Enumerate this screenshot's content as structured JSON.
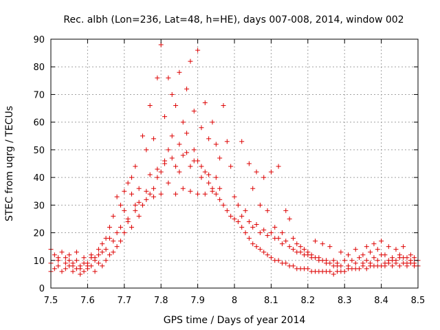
{
  "chart_data": {
    "type": "scatter",
    "title": "Rec. albh (Lon=236, Lat=48, h=HE), days 007-008, 2014, window 002",
    "xlabel": "GPS time / Days of year 2014",
    "ylabel": "STEC from uqrg / TECUs",
    "xlim": [
      7.5,
      8.5
    ],
    "ylim": [
      0,
      90
    ],
    "xticks": [
      "7.5",
      "7.6",
      "7.7",
      "7.8",
      "7.9",
      "8",
      "8.1",
      "8.2",
      "8.3",
      "8.4",
      "8.5"
    ],
    "yticks": [
      "0",
      "10",
      "20",
      "30",
      "40",
      "50",
      "60",
      "70",
      "80",
      "90"
    ],
    "grid": true,
    "marker": "+",
    "color": "#dd0000",
    "series": [
      {
        "name": "STEC",
        "points": [
          [
            7.5,
            6
          ],
          [
            7.5,
            9
          ],
          [
            7.5,
            14
          ],
          [
            7.51,
            7
          ],
          [
            7.51,
            12
          ],
          [
            7.52,
            8
          ],
          [
            7.52,
            10
          ],
          [
            7.53,
            6
          ],
          [
            7.53,
            13
          ],
          [
            7.54,
            7
          ],
          [
            7.54,
            11
          ],
          [
            7.55,
            8
          ],
          [
            7.55,
            12
          ],
          [
            7.56,
            6
          ],
          [
            7.56,
            9
          ],
          [
            7.57,
            7
          ],
          [
            7.57,
            10
          ],
          [
            7.58,
            5
          ],
          [
            7.58,
            8
          ],
          [
            7.59,
            6
          ],
          [
            7.59,
            11
          ],
          [
            7.6,
            7
          ],
          [
            7.6,
            9
          ],
          [
            7.61,
            8
          ],
          [
            7.61,
            12
          ],
          [
            7.62,
            6
          ],
          [
            7.62,
            10
          ],
          [
            7.63,
            9
          ],
          [
            7.63,
            14
          ],
          [
            7.64,
            8
          ],
          [
            7.64,
            16
          ],
          [
            7.65,
            10
          ],
          [
            7.65,
            18
          ],
          [
            7.66,
            12
          ],
          [
            7.66,
            22
          ],
          [
            7.67,
            13
          ],
          [
            7.67,
            26
          ],
          [
            7.68,
            15
          ],
          [
            7.68,
            33
          ],
          [
            7.69,
            17
          ],
          [
            7.69,
            30
          ],
          [
            7.7,
            20
          ],
          [
            7.7,
            35
          ],
          [
            7.71,
            24
          ],
          [
            7.71,
            38
          ],
          [
            7.72,
            22
          ],
          [
            7.72,
            40
          ],
          [
            7.73,
            28
          ],
          [
            7.73,
            44
          ],
          [
            7.74,
            26
          ],
          [
            7.74,
            36
          ],
          [
            7.75,
            30
          ],
          [
            7.75,
            55
          ],
          [
            7.76,
            32
          ],
          [
            7.76,
            50
          ],
          [
            7.77,
            34
          ],
          [
            7.77,
            66
          ],
          [
            7.78,
            36
          ],
          [
            7.78,
            54
          ],
          [
            7.79,
            40
          ],
          [
            7.79,
            76
          ],
          [
            7.8,
            42
          ],
          [
            7.8,
            88
          ],
          [
            7.81,
            46
          ],
          [
            7.81,
            62
          ],
          [
            7.82,
            50
          ],
          [
            7.82,
            76
          ],
          [
            7.83,
            55
          ],
          [
            7.83,
            70
          ],
          [
            7.84,
            44
          ],
          [
            7.84,
            66
          ],
          [
            7.85,
            52
          ],
          [
            7.85,
            78
          ],
          [
            7.86,
            48
          ],
          [
            7.86,
            60
          ],
          [
            7.87,
            56
          ],
          [
            7.87,
            72
          ],
          [
            7.88,
            44
          ],
          [
            7.88,
            82
          ],
          [
            7.89,
            50
          ],
          [
            7.89,
            64
          ],
          [
            7.9,
            46
          ],
          [
            7.9,
            86
          ],
          [
            7.91,
            40
          ],
          [
            7.91,
            58
          ],
          [
            7.92,
            42
          ],
          [
            7.92,
            67
          ],
          [
            7.93,
            38
          ],
          [
            7.93,
            54
          ],
          [
            7.94,
            36
          ],
          [
            7.94,
            60
          ],
          [
            7.95,
            34
          ],
          [
            7.95,
            52
          ],
          [
            7.96,
            32
          ],
          [
            7.96,
            47
          ],
          [
            7.97,
            30
          ],
          [
            7.97,
            66
          ],
          [
            7.98,
            28
          ],
          [
            7.98,
            53
          ],
          [
            7.99,
            26
          ],
          [
            7.99,
            44
          ],
          [
            8.0,
            25
          ],
          [
            8.0,
            33
          ],
          [
            8.01,
            24
          ],
          [
            8.01,
            30
          ],
          [
            8.02,
            22
          ],
          [
            8.02,
            53
          ],
          [
            8.03,
            20
          ],
          [
            8.03,
            28
          ],
          [
            8.04,
            18
          ],
          [
            8.04,
            45
          ],
          [
            8.05,
            16
          ],
          [
            8.05,
            36
          ],
          [
            8.06,
            15
          ],
          [
            8.06,
            42
          ],
          [
            8.07,
            14
          ],
          [
            8.07,
            30
          ],
          [
            8.08,
            13
          ],
          [
            8.08,
            40
          ],
          [
            8.09,
            12
          ],
          [
            8.09,
            28
          ],
          [
            8.1,
            11
          ],
          [
            8.1,
            42
          ],
          [
            8.11,
            10
          ],
          [
            8.11,
            22
          ],
          [
            8.12,
            10
          ],
          [
            8.12,
            44
          ],
          [
            8.13,
            9
          ],
          [
            8.13,
            20
          ],
          [
            8.14,
            9
          ],
          [
            8.14,
            28
          ],
          [
            8.15,
            8
          ],
          [
            8.15,
            25
          ],
          [
            8.16,
            8
          ],
          [
            8.16,
            18
          ],
          [
            8.17,
            7
          ],
          [
            8.17,
            16
          ],
          [
            8.18,
            7
          ],
          [
            8.18,
            15
          ],
          [
            8.19,
            7
          ],
          [
            8.19,
            14
          ],
          [
            8.2,
            7
          ],
          [
            8.2,
            13
          ],
          [
            8.21,
            6
          ],
          [
            8.21,
            12
          ],
          [
            8.22,
            6
          ],
          [
            8.22,
            17
          ],
          [
            8.23,
            6
          ],
          [
            8.23,
            11
          ],
          [
            8.24,
            6
          ],
          [
            8.24,
            16
          ],
          [
            8.25,
            6
          ],
          [
            8.25,
            10
          ],
          [
            8.26,
            6
          ],
          [
            8.26,
            15
          ],
          [
            8.27,
            5
          ],
          [
            8.27,
            10
          ],
          [
            8.28,
            6
          ],
          [
            8.28,
            9
          ],
          [
            8.29,
            6
          ],
          [
            8.29,
            13
          ],
          [
            8.3,
            6
          ],
          [
            8.3,
            10
          ],
          [
            8.31,
            7
          ],
          [
            8.31,
            12
          ],
          [
            8.32,
            7
          ],
          [
            8.32,
            10
          ],
          [
            8.33,
            7
          ],
          [
            8.33,
            14
          ],
          [
            8.34,
            7
          ],
          [
            8.34,
            11
          ],
          [
            8.35,
            8
          ],
          [
            8.35,
            12
          ],
          [
            8.36,
            7
          ],
          [
            8.36,
            15
          ],
          [
            8.37,
            8
          ],
          [
            8.37,
            13
          ],
          [
            8.38,
            8
          ],
          [
            8.38,
            16
          ],
          [
            8.39,
            8
          ],
          [
            8.39,
            14
          ],
          [
            8.4,
            8
          ],
          [
            8.4,
            17
          ],
          [
            8.41,
            8
          ],
          [
            8.41,
            12
          ],
          [
            8.42,
            9
          ],
          [
            8.42,
            15
          ],
          [
            8.43,
            8
          ],
          [
            8.43,
            11
          ],
          [
            8.44,
            9
          ],
          [
            8.44,
            14
          ],
          [
            8.45,
            8
          ],
          [
            8.45,
            12
          ],
          [
            8.46,
            9
          ],
          [
            8.46,
            15
          ],
          [
            8.47,
            8
          ],
          [
            8.47,
            11
          ],
          [
            8.48,
            9
          ],
          [
            8.48,
            10
          ],
          [
            8.49,
            8
          ],
          [
            8.49,
            9
          ],
          [
            8.5,
            8
          ],
          [
            8.5,
            10
          ],
          [
            7.76,
            35
          ],
          [
            7.78,
            33
          ],
          [
            7.8,
            34
          ],
          [
            7.82,
            38
          ],
          [
            7.84,
            34
          ],
          [
            7.86,
            36
          ],
          [
            7.88,
            35
          ],
          [
            7.9,
            34
          ],
          [
            7.92,
            34
          ],
          [
            7.94,
            35
          ],
          [
            7.96,
            36
          ],
          [
            7.77,
            41
          ],
          [
            7.79,
            43
          ],
          [
            7.81,
            45
          ],
          [
            7.83,
            47
          ],
          [
            7.85,
            42
          ],
          [
            7.87,
            49
          ],
          [
            7.89,
            46
          ],
          [
            7.91,
            44
          ],
          [
            7.93,
            41
          ],
          [
            7.95,
            40
          ],
          [
            8.05,
            22
          ],
          [
            8.07,
            20
          ],
          [
            8.09,
            19
          ],
          [
            8.11,
            18
          ],
          [
            8.13,
            16
          ],
          [
            8.15,
            15
          ],
          [
            8.17,
            13
          ],
          [
            8.19,
            12
          ],
          [
            8.21,
            11
          ],
          [
            8.23,
            10
          ],
          [
            8.25,
            9
          ],
          [
            8.27,
            8
          ],
          [
            8.29,
            8
          ],
          [
            8.31,
            8
          ],
          [
            8.33,
            9
          ],
          [
            8.35,
            9
          ],
          [
            7.55,
            10
          ],
          [
            7.57,
            13
          ],
          [
            7.59,
            9
          ],
          [
            7.61,
            11
          ],
          [
            7.63,
            12
          ],
          [
            7.65,
            14
          ],
          [
            7.67,
            17
          ],
          [
            7.69,
            22
          ],
          [
            7.71,
            25
          ],
          [
            7.73,
            30
          ],
          [
            7.74,
            31
          ],
          [
            7.72,
            34
          ],
          [
            7.7,
            28
          ],
          [
            7.68,
            20
          ],
          [
            7.66,
            18
          ],
          [
            7.64,
            13
          ],
          [
            7.62,
            11
          ],
          [
            7.6,
            8
          ],
          [
            7.58,
            7
          ],
          [
            7.56,
            8
          ],
          [
            7.54,
            9
          ],
          [
            7.52,
            11
          ],
          [
            8.36,
            10
          ],
          [
            8.38,
            11
          ],
          [
            8.4,
            12
          ],
          [
            8.42,
            10
          ],
          [
            8.44,
            10
          ],
          [
            8.46,
            11
          ],
          [
            8.48,
            12
          ],
          [
            8.37,
            9
          ],
          [
            8.39,
            10
          ],
          [
            8.41,
            9
          ],
          [
            8.43,
            10
          ],
          [
            8.45,
            11
          ],
          [
            8.47,
            9
          ],
          [
            8.49,
            11
          ],
          [
            8.02,
            26
          ],
          [
            8.04,
            24
          ],
          [
            8.06,
            23
          ],
          [
            8.08,
            21
          ],
          [
            8.1,
            20
          ],
          [
            8.12,
            18
          ],
          [
            8.14,
            17
          ],
          [
            8.16,
            14
          ],
          [
            8.18,
            13
          ],
          [
            8.2,
            12
          ],
          [
            8.22,
            11
          ],
          [
            8.24,
            10
          ],
          [
            8.26,
            9
          ],
          [
            8.28,
            8
          ]
        ]
      }
    ]
  }
}
